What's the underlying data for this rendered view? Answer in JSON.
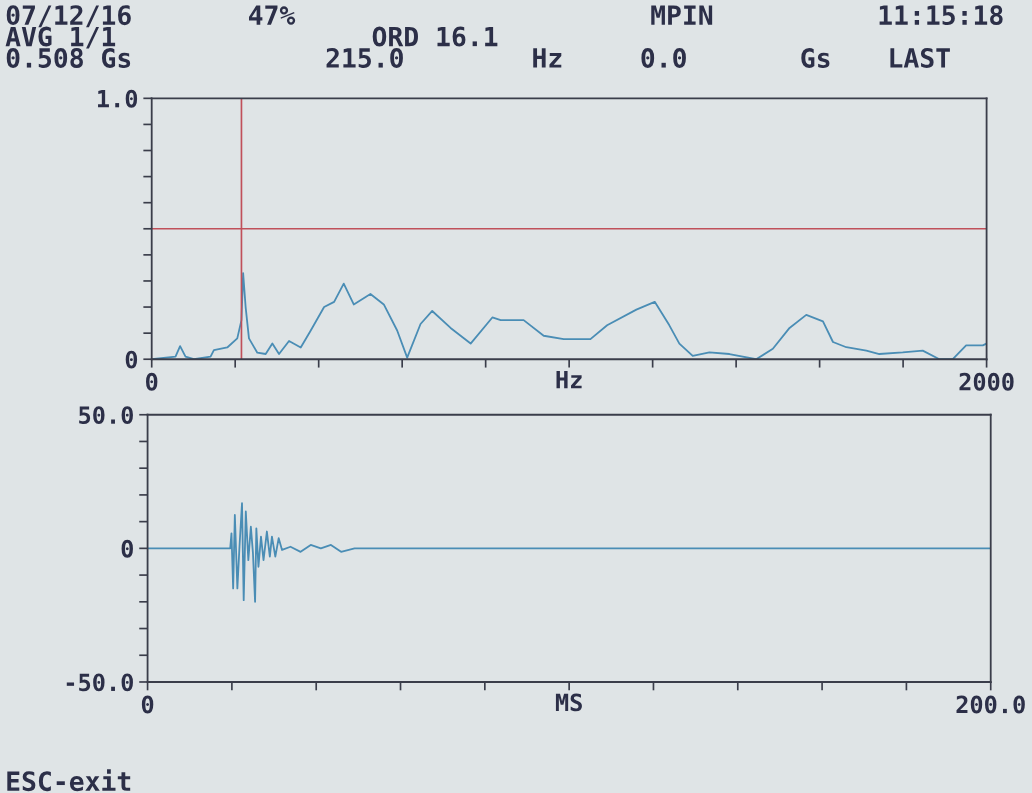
{
  "chart_data": [
    {
      "type": "line",
      "xlabel": "Hz",
      "annotations": [
        "07/12/16",
        "47%",
        "MPIN",
        "11:15:18",
        "AVG 1/1",
        "ORD 16.1",
        "0.508 Gs",
        "215.0",
        "Hz",
        "0.0",
        "Gs",
        "LAST"
      ],
      "series": [
        {
          "color": "#4a8db5",
          "x": [
            0,
            57,
            68,
            81,
            101,
            141,
            149,
            181,
            205,
            215,
            219,
            225,
            233,
            253,
            273,
            289,
            305,
            329,
            357,
            381,
            413,
            437,
            460,
            484,
            524,
            556,
            588,
            612,
            644,
            672,
            716,
            764,
            816,
            836,
            891,
            939,
            987,
            1051,
            1091,
            1161,
            1205,
            1240,
            1264,
            1296,
            1336,
            1384,
            1448,
            1488,
            1528,
            1568,
            1608,
            1632,
            1664,
            1712,
            1743,
            1799,
            1847,
            1887,
            1919,
            1951,
            1991,
            2000
          ],
          "values": [
            0,
            0.01,
            0.05,
            0.01,
            0,
            0.01,
            0.035,
            0.045,
            0.08,
            0.15,
            0.33,
            0.2,
            0.08,
            0.025,
            0.02,
            0.06,
            0.02,
            0.07,
            0.045,
            0.11,
            0.2,
            0.22,
            0.29,
            0.21,
            0.25,
            0.21,
            0.11,
            0.006,
            0.135,
            0.185,
            0.12,
            0.06,
            0.16,
            0.15,
            0.15,
            0.09,
            0.077,
            0.077,
            0.13,
            0.19,
            0.22,
            0.13,
            0.06,
            0.013,
            0.026,
            0.02,
            0,
            0.04,
            0.12,
            0.17,
            0.145,
            0.066,
            0.046,
            0.033,
            0.02,
            0.026,
            0.033,
            0,
            0,
            0.053,
            0.053,
            0.06
          ]
        }
      ],
      "xlim": [
        0,
        2000
      ],
      "xticks": [
        0,
        {
          "value": 200,
          "label": null
        },
        {
          "value": 400,
          "label": null
        },
        {
          "value": 600,
          "label": null
        },
        {
          "value": 800,
          "label": null
        },
        {
          "value": 1000,
          "label": null
        },
        {
          "value": 1200,
          "label": null
        },
        {
          "value": 1400,
          "label": null
        },
        {
          "value": 1600,
          "label": null
        },
        {
          "value": 1800,
          "label": null
        },
        2000
      ],
      "ylim": [
        0,
        1.0
      ],
      "yticks": [
        0,
        {
          "value": 0.1,
          "label": null
        },
        {
          "value": 0.2,
          "label": null
        },
        {
          "value": 0.3,
          "label": null
        },
        {
          "value": 0.4,
          "label": null
        },
        {
          "value": 0.5,
          "label": null
        },
        {
          "value": 0.6,
          "label": null
        },
        {
          "value": 0.7,
          "label": null
        },
        {
          "value": 0.8,
          "label": null
        },
        {
          "value": 0.9,
          "label": null
        },
        {
          "value": 1.0,
          "label": "1.0"
        }
      ],
      "ref_lines": [
        {
          "axis": "x",
          "value": 215,
          "color": "#c0505a"
        },
        {
          "axis": "y",
          "value": 0.5,
          "color": "#c0505a"
        }
      ]
    },
    {
      "type": "line",
      "xlabel": "MS",
      "annotations": [
        "ESC-exit"
      ],
      "series": [
        {
          "color": "#4a8db5",
          "x": [
            0,
            19.6,
            19.9,
            20.3,
            20.7,
            21.3,
            21.8,
            22.4,
            22.8,
            23.3,
            23.9,
            24.5,
            25.0,
            25.5,
            25.8,
            26.3,
            26.9,
            27.5,
            28.3,
            29.0,
            29.5,
            30.3,
            31.1,
            31.9,
            33.9,
            36.3,
            38.7,
            41.1,
            43.5,
            45.9,
            49.1,
            59.8,
            200
          ],
          "values": [
            0,
            0,
            5.6,
            -15,
            12.5,
            -15,
            0.6,
            16.9,
            -19.4,
            13.8,
            -4.4,
            8.1,
            -1.9,
            -20,
            7.5,
            -6.9,
            4.4,
            -4.4,
            6.3,
            -3.1,
            4.4,
            -3.1,
            3.8,
            -0.6,
            0.6,
            -1.3,
            1.3,
            0,
            1.3,
            -1.3,
            0,
            0,
            0
          ]
        }
      ],
      "xlim": [
        0,
        200.0
      ],
      "xticks": [
        0,
        {
          "value": 20,
          "label": null
        },
        {
          "value": 40,
          "label": null
        },
        {
          "value": 60,
          "label": null
        },
        {
          "value": 80,
          "label": null
        },
        {
          "value": 100,
          "label": null
        },
        {
          "value": 120,
          "label": null
        },
        {
          "value": 140,
          "label": null
        },
        {
          "value": 160,
          "label": null
        },
        {
          "value": 180,
          "label": null
        },
        {
          "value": 200,
          "label": "200.0"
        }
      ],
      "ylim": [
        -50.0,
        50.0
      ],
      "yticks": [
        {
          "value": -50,
          "label": "-50.0"
        },
        {
          "value": -40,
          "label": null
        },
        {
          "value": -30,
          "label": null
        },
        {
          "value": -20,
          "label": null
        },
        {
          "value": -10,
          "label": null
        },
        0,
        {
          "value": 10,
          "label": null
        },
        {
          "value": 20,
          "label": null
        },
        {
          "value": 30,
          "label": null
        },
        {
          "value": 40,
          "label": null
        },
        {
          "value": 50,
          "label": "50.0"
        }
      ]
    }
  ]
}
